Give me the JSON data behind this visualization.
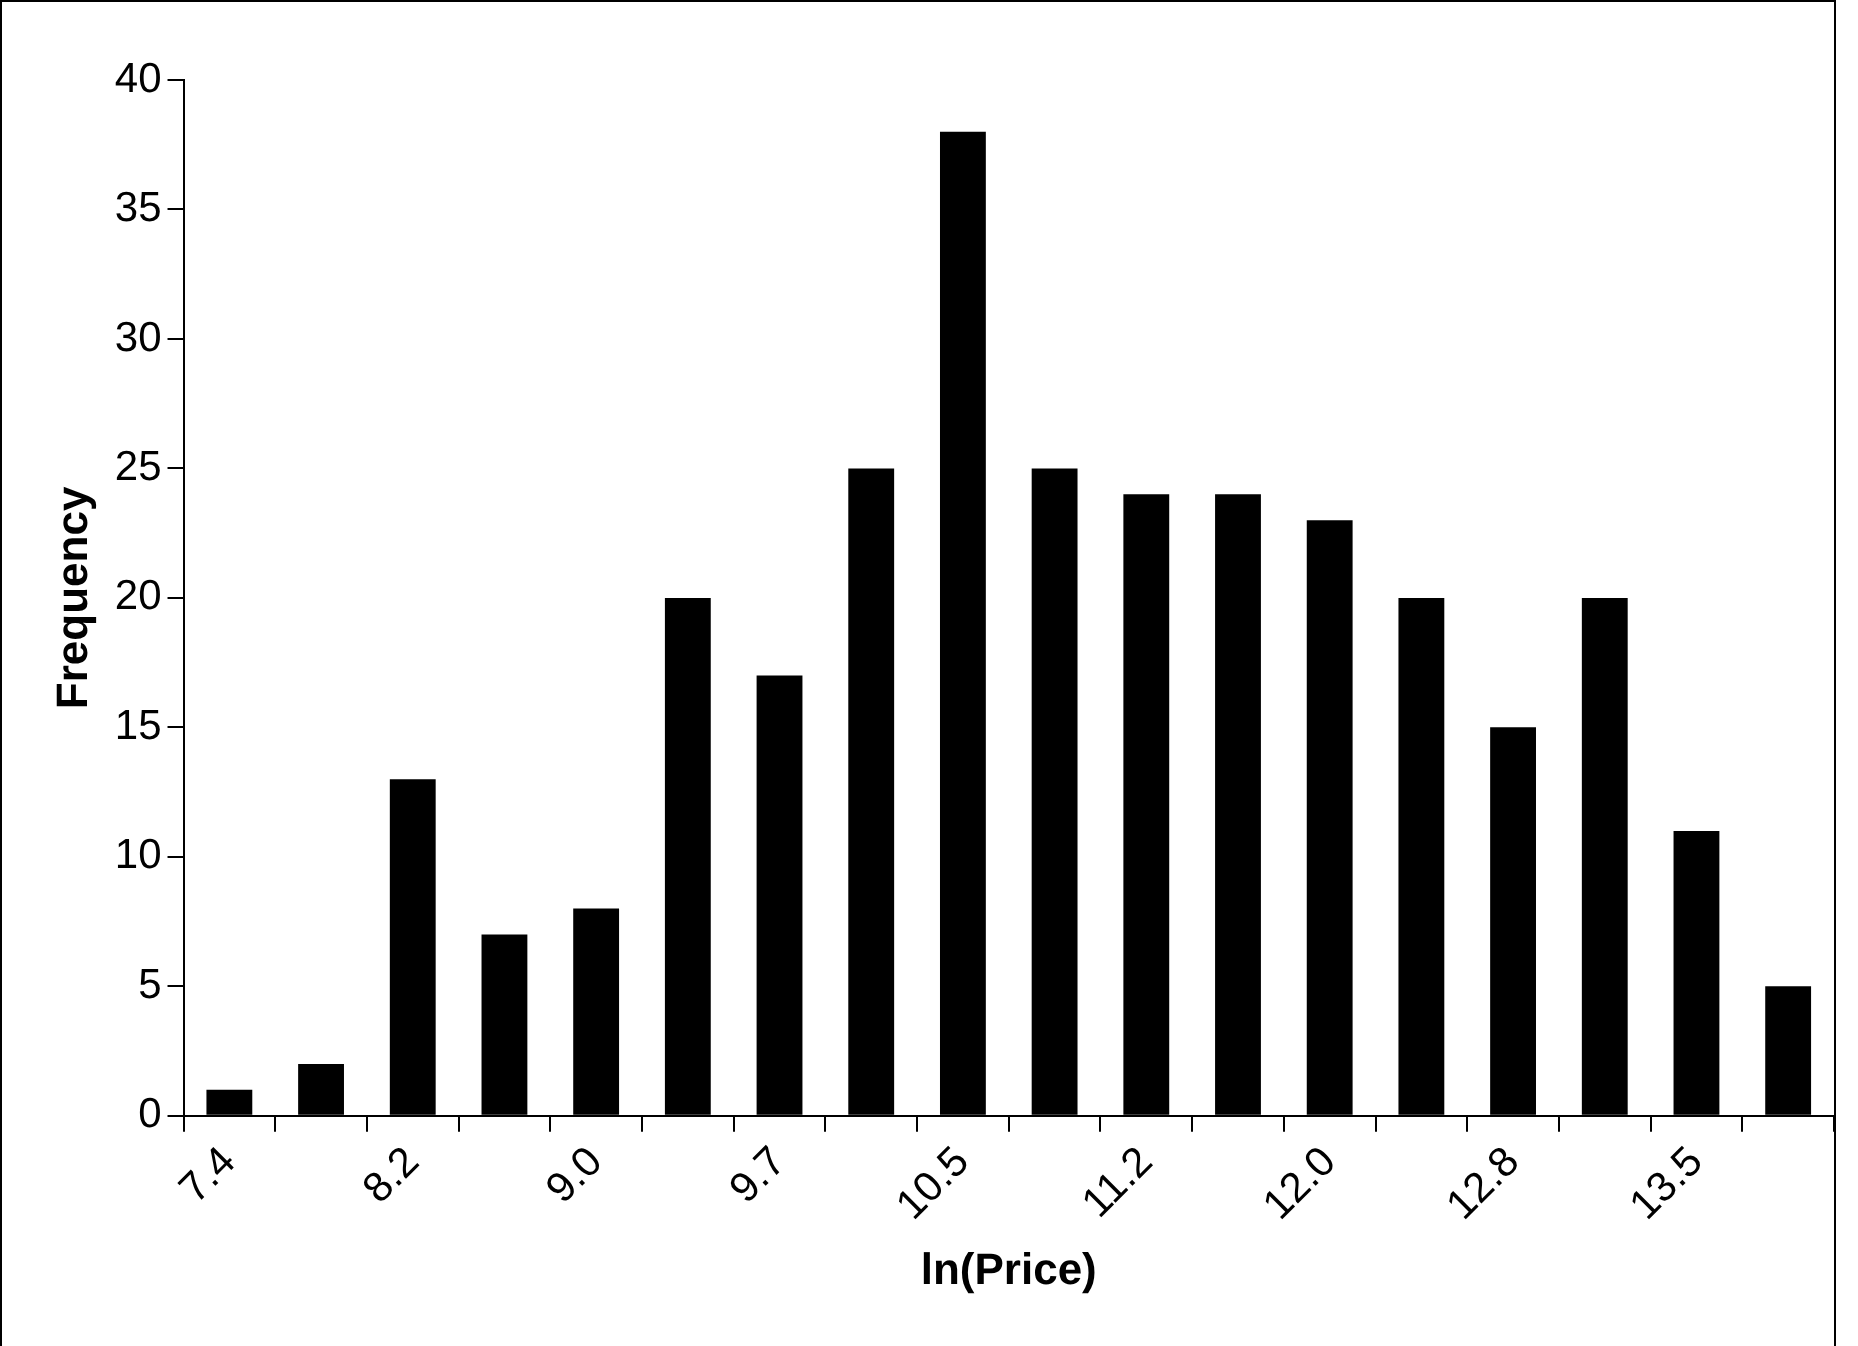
{
  "chart_data": {
    "type": "bar",
    "xlabel": "ln(Price)",
    "ylabel": "Frequency",
    "categories": [
      "7.4",
      null,
      "8.2",
      null,
      "9.0",
      null,
      "9.7",
      null,
      "10.5",
      null,
      "11.2",
      null,
      "12.0",
      null,
      "12.8",
      null,
      "13.5",
      null
    ],
    "values": [
      1,
      2,
      13,
      7,
      8,
      20,
      17,
      25,
      38,
      25,
      24,
      24,
      23,
      20,
      15,
      20,
      11,
      5
    ],
    "color": "#000000",
    "ylim": [
      0,
      40
    ],
    "yticks": [
      0,
      5,
      10,
      15,
      20,
      25,
      30,
      35,
      40
    ],
    "grid": false,
    "legend": false
  }
}
